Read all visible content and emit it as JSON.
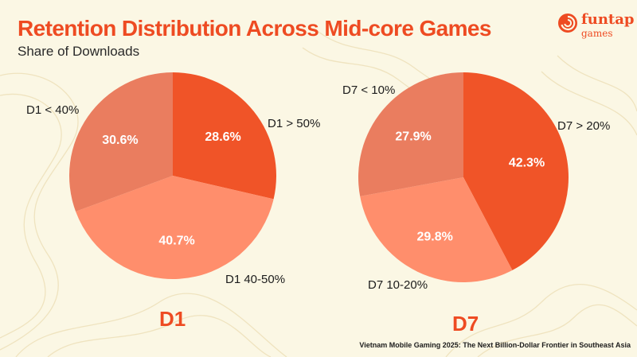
{
  "header": {
    "title": "Retention Distribution Across Mid-core Games",
    "subtitle": "Share of Downloads"
  },
  "logo": {
    "line1": "funtap",
    "line2": "games"
  },
  "footer": {
    "source": "Vietnam Mobile Gaming 2025: The Next Billion-Dollar Frontier in Southeast Asia"
  },
  "colors": {
    "accent": "#ee4b22",
    "background": "#fbf7e4"
  },
  "chart_data": [
    {
      "type": "pie",
      "title": "D1",
      "categories": [
        "D1 > 50%",
        "D1 40-50%",
        "D1 < 40%"
      ],
      "values": [
        28.6,
        40.7,
        30.6
      ],
      "value_labels": [
        "28.6%",
        "40.7%",
        "30.6%"
      ],
      "colors": [
        "#f05428",
        "#ff8e6c",
        "#ea7d5f"
      ],
      "start_angle_deg": 0,
      "direction": "clockwise"
    },
    {
      "type": "pie",
      "title": "D7",
      "categories": [
        "D7 > 20%",
        "D7 10-20%",
        "D7 < 10%"
      ],
      "values": [
        42.3,
        29.8,
        27.9
      ],
      "value_labels": [
        "42.3%",
        "29.8%",
        "27.9%"
      ],
      "colors": [
        "#f05428",
        "#ff8e6c",
        "#ea7d5f"
      ],
      "start_angle_deg": 0,
      "direction": "clockwise"
    }
  ]
}
